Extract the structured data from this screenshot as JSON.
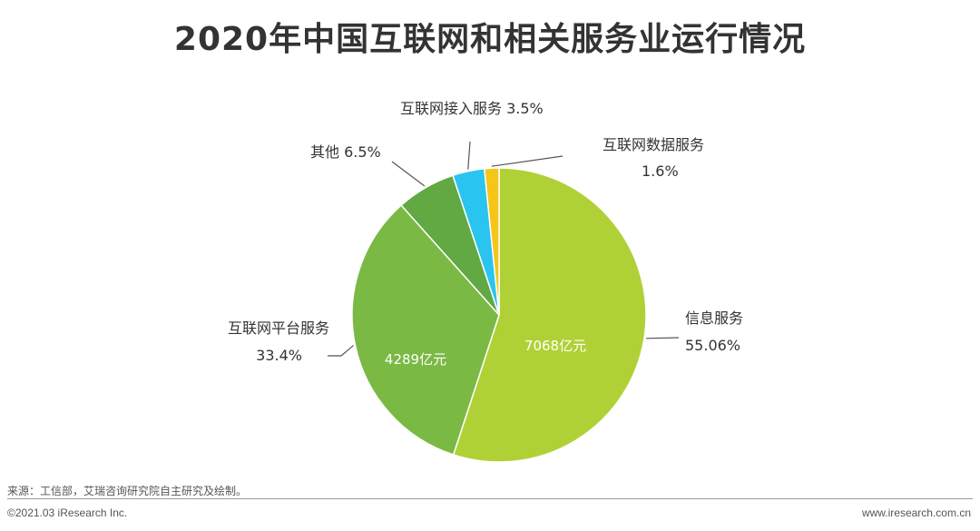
{
  "chart_data": {
    "type": "pie",
    "title": "2020年中国互联网和相关服务业运行情况",
    "slices": [
      {
        "name": "信息服务",
        "percent_label": "55.06%",
        "value": 55.06,
        "inner_label": "7068亿元",
        "color": "#b0d136"
      },
      {
        "name": "互联网平台服务",
        "percent_label": "33.4%",
        "value": 33.4,
        "inner_label": "4289亿元",
        "color": "#7ab944"
      },
      {
        "name": "其他",
        "percent_label": "6.5%",
        "value": 6.5,
        "inner_label": "",
        "color": "#62a843"
      },
      {
        "name": "互联网接入服务",
        "percent_label": "3.5%",
        "value": 3.5,
        "inner_label": "",
        "color": "#29c4ef"
      },
      {
        "name": "互联网数据服务",
        "percent_label": "1.6%",
        "value": 1.6,
        "inner_label": "",
        "color": "#f5c518"
      }
    ],
    "labels": {
      "info": {
        "line1": "信息服务",
        "line2": "55.06%"
      },
      "platform": {
        "line1": "互联网平台服务",
        "line2": "33.4%"
      },
      "other": {
        "line1": "其他 6.5%"
      },
      "access": {
        "line1": "互联网接入服务 3.5%"
      },
      "data": {
        "line1": "互联网数据服务",
        "line2": "1.6%"
      }
    }
  },
  "footer": {
    "source": "来源：工信部，艾瑞咨询研究院自主研究及绘制。",
    "copyright": "©2021.03 iResearch Inc.",
    "website": "www.iresearch.com.cn"
  }
}
